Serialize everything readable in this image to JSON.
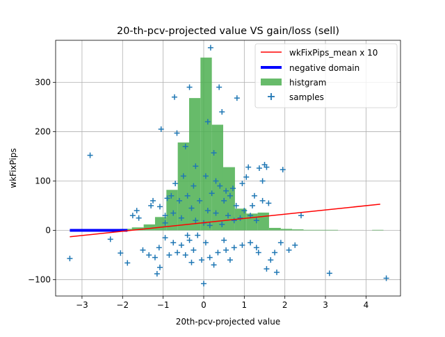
{
  "chart_data": {
    "type": "scatter",
    "title": "20-th-pcv-projected value VS gain/loss (sell)",
    "xlabel": "20th-pcv-projected value",
    "ylabel": "wkFixPips",
    "xlim": [
      -3.65,
      4.85
    ],
    "ylim": [
      -133,
      385
    ],
    "xticks": [
      -3,
      -2,
      -1,
      0,
      1,
      2,
      3,
      4
    ],
    "xtick_labels": [
      "−3",
      "−2",
      "−1",
      "0",
      "1",
      "2",
      "3",
      "4"
    ],
    "yticks": [
      -100,
      0,
      100,
      200,
      300
    ],
    "ytick_labels": [
      "−100",
      "0",
      "100",
      "200",
      "300"
    ],
    "grid": true,
    "legend_position": "top-right",
    "legend": [
      {
        "label": "wkFixPips_mean x 10",
        "kind": "line",
        "color": "#ff0000"
      },
      {
        "label": "negative domain",
        "kind": "thick-line",
        "color": "#0000ff"
      },
      {
        "label": "histgram",
        "kind": "patch",
        "color": "#4caf50"
      },
      {
        "label": "samples",
        "kind": "marker",
        "color": "#1f77b4"
      }
    ],
    "mean_line": {
      "x": [
        -3.3,
        4.35
      ],
      "y": [
        -13,
        53
      ],
      "color": "#ff0000"
    },
    "negative_domain": {
      "x": [
        -3.3,
        -1.88
      ],
      "y": [
        0,
        0
      ],
      "color": "#0000ff"
    },
    "histogram": {
      "color": "#4caf50",
      "bins": [
        {
          "x0": -2.05,
          "x1": -1.77,
          "height": 3
        },
        {
          "x0": -1.77,
          "x1": -1.48,
          "height": 6
        },
        {
          "x0": -1.48,
          "x1": -1.2,
          "height": 12
        },
        {
          "x0": -1.2,
          "x1": -0.92,
          "height": 27
        },
        {
          "x0": -0.92,
          "x1": -0.64,
          "height": 82
        },
        {
          "x0": -0.64,
          "x1": -0.36,
          "height": 178
        },
        {
          "x0": -0.36,
          "x1": -0.08,
          "height": 268
        },
        {
          "x0": -0.08,
          "x1": 0.2,
          "height": 350
        },
        {
          "x0": 0.2,
          "x1": 0.48,
          "height": 214
        },
        {
          "x0": 0.48,
          "x1": 0.77,
          "height": 128
        },
        {
          "x0": 0.77,
          "x1": 1.05,
          "height": 44
        },
        {
          "x0": 1.05,
          "x1": 1.33,
          "height": 34
        },
        {
          "x0": 1.33,
          "x1": 1.61,
          "height": 36
        },
        {
          "x0": 1.61,
          "x1": 1.9,
          "height": 5
        },
        {
          "x0": 1.9,
          "x1": 2.18,
          "height": 3
        },
        {
          "x0": 2.18,
          "x1": 2.46,
          "height": 2
        },
        {
          "x0": 2.46,
          "x1": 2.74,
          "height": 1
        },
        {
          "x0": 2.74,
          "x1": 3.03,
          "height": 1
        },
        {
          "x0": 3.03,
          "x1": 3.31,
          "height": 1
        },
        {
          "x0": 4.15,
          "x1": 4.43,
          "height": 1
        }
      ]
    },
    "scatter": {
      "name": "samples",
      "color": "#1f77b4",
      "points": [
        [
          0.17,
          370
        ],
        [
          -0.72,
          270
        ],
        [
          -0.66,
          197
        ],
        [
          0.25,
          157
        ],
        [
          0.82,
          268
        ],
        [
          -1.05,
          205
        ],
        [
          -2.8,
          152
        ],
        [
          -3.3,
          -57
        ],
        [
          4.5,
          -97
        ],
        [
          3.1,
          -87
        ],
        [
          0.0,
          -108
        ],
        [
          -1.15,
          -88
        ],
        [
          1.55,
          -78
        ],
        [
          1.8,
          -85
        ],
        [
          -2.3,
          -18
        ],
        [
          -2.05,
          -46
        ],
        [
          -1.88,
          -66
        ],
        [
          2.4,
          30
        ],
        [
          1.55,
          128
        ],
        [
          1.37,
          126
        ],
        [
          1.5,
          133
        ],
        [
          1.95,
          123
        ],
        [
          1.45,
          100
        ],
        [
          1.05,
          108
        ],
        [
          1.1,
          128
        ],
        [
          -0.35,
          290
        ],
        [
          0.38,
          290
        ],
        [
          0.1,
          220
        ],
        [
          0.45,
          240
        ],
        [
          -0.45,
          170
        ],
        [
          -1.5,
          -40
        ],
        [
          -1.35,
          -50
        ],
        [
          -1.25,
          60
        ],
        [
          -1.3,
          50
        ],
        [
          -1.08,
          48
        ],
        [
          -1.75,
          30
        ],
        [
          -1.6,
          25
        ],
        [
          -1.65,
          40
        ],
        [
          -0.95,
          30
        ],
        [
          -1.2,
          -55
        ],
        [
          -1.08,
          -75
        ],
        [
          -0.9,
          65
        ],
        [
          2.25,
          -30
        ],
        [
          2.1,
          -40
        ],
        [
          1.75,
          -45
        ],
        [
          1.9,
          -25
        ],
        [
          1.65,
          -60
        ],
        [
          1.35,
          -45
        ],
        [
          1.25,
          70
        ],
        [
          1.2,
          50
        ],
        [
          1.45,
          60
        ],
        [
          1.6,
          55
        ],
        [
          0.95,
          95
        ],
        [
          0.72,
          85
        ],
        [
          0.55,
          80
        ],
        [
          0.65,
          70
        ],
        [
          0.3,
          100
        ],
        [
          -0.2,
          130
        ],
        [
          -0.5,
          110
        ],
        [
          -0.7,
          95
        ],
        [
          -0.8,
          70
        ],
        [
          -0.6,
          60
        ],
        [
          -0.4,
          70
        ],
        [
          -0.25,
          90
        ],
        [
          0.05,
          110
        ],
        [
          0.2,
          75
        ],
        [
          0.4,
          90
        ],
        [
          0.5,
          60
        ],
        [
          0.8,
          50
        ],
        [
          1.0,
          40
        ],
        [
          1.15,
          30
        ],
        [
          1.3,
          20
        ],
        [
          0.9,
          25
        ],
        [
          -0.3,
          45
        ],
        [
          -0.1,
          60
        ],
        [
          0.1,
          40
        ],
        [
          0.3,
          35
        ],
        [
          0.6,
          30
        ],
        [
          0.75,
          20
        ],
        [
          -0.55,
          25
        ],
        [
          -0.75,
          35
        ],
        [
          -0.95,
          15
        ],
        [
          -0.2,
          20
        ],
        [
          0.0,
          15
        ],
        [
          0.15,
          10
        ],
        [
          0.45,
          12
        ],
        [
          -0.15,
          -10
        ],
        [
          -0.35,
          -20
        ],
        [
          -0.55,
          -30
        ],
        [
          -0.75,
          -25
        ],
        [
          -0.95,
          -15
        ],
        [
          -1.1,
          -35
        ],
        [
          -0.65,
          -45
        ],
        [
          -0.45,
          -50
        ],
        [
          -0.25,
          -40
        ],
        [
          -0.05,
          -60
        ],
        [
          0.15,
          -55
        ],
        [
          0.35,
          -45
        ],
        [
          0.55,
          -40
        ],
        [
          0.75,
          -35
        ],
        [
          0.95,
          -30
        ],
        [
          1.15,
          -25
        ],
        [
          1.3,
          -35
        ],
        [
          0.25,
          -70
        ],
        [
          -0.3,
          -65
        ],
        [
          0.5,
          -20
        ],
        [
          0.05,
          -25
        ],
        [
          -0.85,
          -50
        ],
        [
          0.65,
          -60
        ],
        [
          -0.4,
          -10
        ]
      ]
    }
  }
}
